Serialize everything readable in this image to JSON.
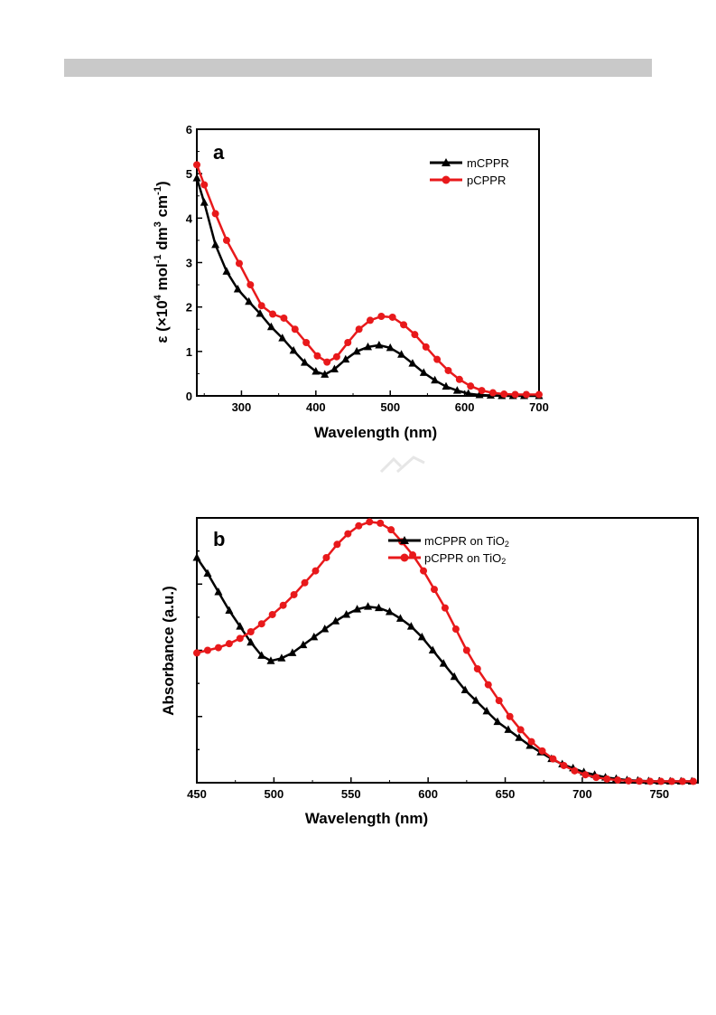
{
  "header": {
    "bar_color": "#c9c9c9"
  },
  "chart_data": [
    {
      "type": "line",
      "panel_label": "a",
      "xlabel": "Wavelength (nm)",
      "ylabel_parts": [
        "ε (×10",
        "4",
        "  mol",
        "-1",
        " dm",
        "3",
        " cm",
        "-1",
        ")"
      ],
      "xlim": [
        240,
        700
      ],
      "ylim": [
        0,
        6
      ],
      "x_ticks": [
        300,
        400,
        500,
        600,
        700
      ],
      "y_ticks": [
        0,
        1,
        2,
        3,
        4,
        5,
        6
      ],
      "legend_position": "top-right",
      "series": [
        {
          "name": "mCPPR",
          "color": "#000000",
          "marker": "triangle",
          "x": [
            240,
            250,
            265,
            280,
            295,
            310,
            325,
            340,
            355,
            370,
            385,
            400,
            412,
            425,
            440,
            455,
            470,
            485,
            500,
            515,
            530,
            545,
            560,
            575,
            590,
            605,
            620,
            635,
            650,
            665,
            680,
            700
          ],
          "y": [
            4.9,
            4.35,
            3.4,
            2.8,
            2.4,
            2.12,
            1.85,
            1.55,
            1.3,
            1.02,
            0.75,
            0.55,
            0.48,
            0.6,
            0.82,
            1.0,
            1.1,
            1.14,
            1.08,
            0.93,
            0.73,
            0.52,
            0.35,
            0.21,
            0.12,
            0.05,
            0.02,
            0.01,
            0.0,
            0.0,
            0.0,
            0.0
          ]
        },
        {
          "name": "pCPPR",
          "color": "#e8191b",
          "marker": "circle",
          "x": [
            240,
            250,
            265,
            280,
            297,
            312,
            327,
            342,
            357,
            372,
            387,
            402,
            415,
            428,
            443,
            458,
            473,
            488,
            503,
            518,
            533,
            548,
            563,
            578,
            593,
            608,
            623,
            638,
            653,
            668,
            683,
            700
          ],
          "y": [
            5.2,
            4.75,
            4.1,
            3.5,
            2.98,
            2.5,
            2.03,
            1.84,
            1.75,
            1.5,
            1.2,
            0.9,
            0.76,
            0.88,
            1.2,
            1.5,
            1.7,
            1.79,
            1.77,
            1.6,
            1.38,
            1.1,
            0.82,
            0.57,
            0.37,
            0.22,
            0.12,
            0.07,
            0.04,
            0.03,
            0.03,
            0.03
          ]
        }
      ]
    },
    {
      "type": "line",
      "panel_label": "b",
      "xlabel": "Wavelength (nm)",
      "ylabel": "Absorbance (a.u.)",
      "xlim": [
        450,
        775
      ],
      "ylim": [
        0,
        1
      ],
      "x_ticks": [
        450,
        500,
        550,
        600,
        650,
        700,
        750
      ],
      "y_tick_count": 7,
      "y_tick_labels_shown": false,
      "legend_position": "top-right",
      "series": [
        {
          "name_text": "mCPPR on TiO",
          "name_sub": "2",
          "color": "#000000",
          "marker": "triangle",
          "x": [
            450,
            457,
            464,
            471,
            478,
            485,
            492,
            498,
            505,
            512,
            519,
            526,
            533,
            540,
            547,
            554,
            561,
            568,
            575,
            582,
            589,
            596,
            603,
            610,
            617,
            624,
            631,
            638,
            645,
            652,
            659,
            666,
            673,
            680,
            687,
            694,
            701,
            708,
            715,
            722,
            729,
            736,
            743,
            750,
            757,
            764,
            771
          ],
          "y": [
            0.85,
            0.79,
            0.72,
            0.65,
            0.59,
            0.53,
            0.48,
            0.46,
            0.47,
            0.49,
            0.52,
            0.55,
            0.58,
            0.61,
            0.635,
            0.655,
            0.665,
            0.66,
            0.645,
            0.62,
            0.59,
            0.55,
            0.5,
            0.45,
            0.4,
            0.35,
            0.31,
            0.27,
            0.23,
            0.2,
            0.17,
            0.14,
            0.115,
            0.09,
            0.07,
            0.055,
            0.04,
            0.03,
            0.02,
            0.015,
            0.01,
            0.008,
            0.006,
            0.005,
            0.005,
            0.005,
            0.005
          ]
        },
        {
          "name_text": "pCPPR on TiO",
          "name_sub": "2",
          "color": "#e8191b",
          "marker": "circle",
          "x": [
            450,
            457,
            464,
            471,
            478,
            485,
            492,
            499,
            506,
            513,
            520,
            527,
            534,
            541,
            548,
            555,
            562,
            569,
            576,
            583,
            590,
            597,
            604,
            611,
            618,
            625,
            632,
            639,
            646,
            653,
            660,
            667,
            674,
            681,
            688,
            695,
            702,
            709,
            716,
            723,
            730,
            737,
            744,
            751,
            758,
            765,
            772
          ],
          "y": [
            0.49,
            0.5,
            0.51,
            0.525,
            0.545,
            0.57,
            0.6,
            0.635,
            0.67,
            0.71,
            0.755,
            0.8,
            0.85,
            0.9,
            0.94,
            0.97,
            0.985,
            0.98,
            0.955,
            0.91,
            0.86,
            0.8,
            0.73,
            0.66,
            0.58,
            0.5,
            0.43,
            0.37,
            0.31,
            0.25,
            0.2,
            0.155,
            0.12,
            0.09,
            0.065,
            0.045,
            0.03,
            0.02,
            0.014,
            0.01,
            0.007,
            0.006,
            0.005,
            0.005,
            0.005,
            0.005,
            0.005
          ]
        }
      ]
    }
  ]
}
